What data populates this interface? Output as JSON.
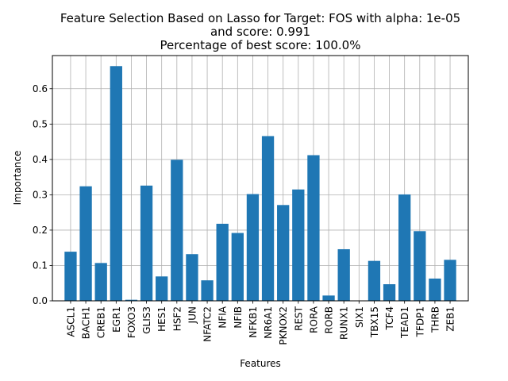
{
  "chart_data": {
    "type": "bar",
    "title_lines": [
      "Feature Selection Based on Lasso for Target: FOS with alpha: 1e-05",
      "and score: 0.991",
      "Percentage of best score: 100.0%"
    ],
    "xlabel": "Features",
    "ylabel": "Importance",
    "categories": [
      "ASCL1",
      "BACH1",
      "CREB1",
      "EGR1",
      "FOXO3",
      "GLIS3",
      "HES1",
      "HSF2",
      "JUN",
      "NFATC2",
      "NFIA",
      "NFIB",
      "NFKB1",
      "NR6A1",
      "PKNOX2",
      "REST",
      "RORA",
      "RORB",
      "RUNX1",
      "SIX1",
      "TBX15",
      "TCF4",
      "TEAD1",
      "TFDP1",
      "THRB",
      "ZEB1"
    ],
    "values": [
      0.139,
      0.324,
      0.107,
      0.664,
      0.003,
      0.326,
      0.069,
      0.399,
      0.132,
      0.058,
      0.218,
      0.192,
      0.302,
      0.466,
      0.271,
      0.315,
      0.412,
      0.015,
      0.146,
      0.0,
      0.113,
      0.047,
      0.301,
      0.197,
      0.063,
      0.116
    ],
    "ylim": [
      0,
      0.6938
    ],
    "yticks": [
      0.0,
      0.1,
      0.2,
      0.3,
      0.4,
      0.5,
      0.6
    ],
    "ytick_labels": [
      "0.0",
      "0.1",
      "0.2",
      "0.3",
      "0.4",
      "0.5",
      "0.6"
    ],
    "grid": true,
    "bar_color": "#1f77b4",
    "grid_color": "#b0b0b0"
  }
}
